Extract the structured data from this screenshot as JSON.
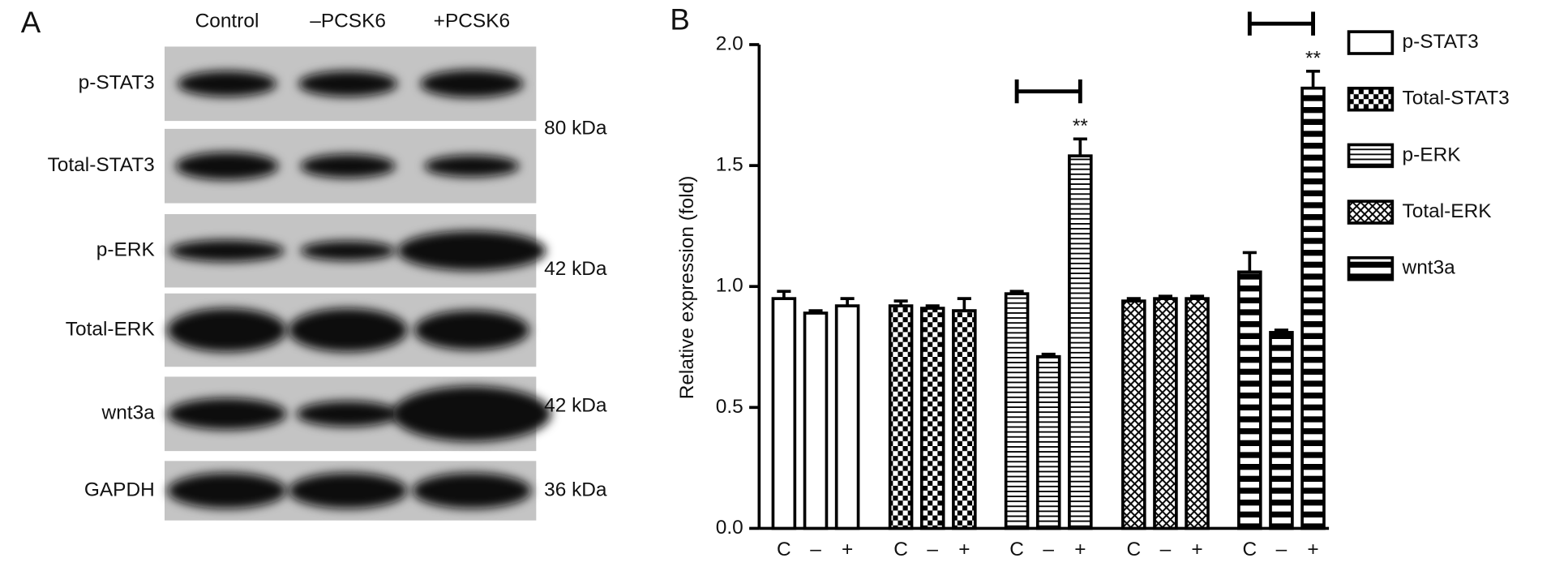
{
  "panel_a": {
    "label": "A",
    "lanes": [
      "Control",
      "–PCSK6",
      "+PCSK6"
    ],
    "rows": [
      "p-STAT3",
      "Total-STAT3",
      "p-ERK",
      "Total-ERK",
      "wnt3a",
      "GAPDH"
    ],
    "sizes": [
      "80 kDa",
      "42 kDa",
      "42 kDa",
      "36 kDa"
    ]
  },
  "chart_data": {
    "type": "bar",
    "panel_label": "B",
    "y_label": "Relative expression (fold)",
    "categories": [
      "C",
      "–",
      "+"
    ],
    "ylim": [
      0,
      2.0
    ],
    "yticks": [
      {
        "value": 0,
        "label": "0.0"
      },
      0.5,
      {
        "value": 1,
        "label": "1.0"
      },
      1.5,
      {
        "value": 2,
        "label": "2.0"
      }
    ],
    "legend": "right",
    "series": [
      {
        "name": "p-STAT3",
        "color": "#000000",
        "pattern": "none",
        "values": [
          0.95,
          0.89,
          0.92
        ],
        "errors": [
          0.03,
          0.01,
          0.03
        ],
        "significance": [
          null,
          null,
          null
        ]
      },
      {
        "name": "Total-STAT3",
        "color": "#000000",
        "pattern": "checker",
        "values": [
          0.92,
          0.91,
          0.9
        ],
        "errors": [
          0.02,
          0.01,
          0.05
        ],
        "significance": [
          null,
          null,
          null
        ]
      },
      {
        "name": "p-ERK",
        "color": "#000000",
        "pattern": "hlines",
        "values": [
          0.97,
          0.71,
          1.54
        ],
        "errors": [
          0.01,
          0.01,
          0.07
        ],
        "significance": [
          null,
          null,
          "**"
        ]
      },
      {
        "name": "Total-ERK",
        "color": "#000000",
        "pattern": "dots",
        "values": [
          0.94,
          0.95,
          0.95
        ],
        "errors": [
          0.01,
          0.01,
          0.01
        ],
        "significance": [
          null,
          null,
          null
        ]
      },
      {
        "name": "wnt3a",
        "color": "#000000",
        "pattern": "hstripes",
        "values": [
          1.06,
          0.81,
          1.82
        ],
        "errors": [
          0.08,
          0.01,
          0.07
        ],
        "significance": [
          null,
          null,
          "**"
        ]
      }
    ]
  }
}
